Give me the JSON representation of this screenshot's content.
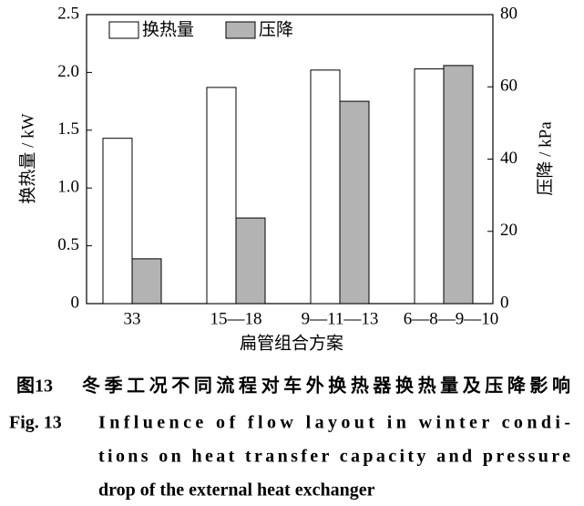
{
  "chart_data": {
    "type": "bar",
    "x_label": "扁管组合方案",
    "y_label": "换热量 / kW",
    "y2_label": "压降 / kPa",
    "categories": [
      "33",
      "15—18",
      "9—11—13",
      "6—8—9—10"
    ],
    "series": [
      {
        "name": "换热量",
        "color": "#ffffff",
        "values": [
          1.43,
          1.87,
          2.02,
          2.03
        ]
      },
      {
        "name": "压降",
        "color": "#b3b3b3",
        "axis": "y2",
        "values": [
          12.4,
          23.7,
          56,
          65.9
        ]
      }
    ],
    "ylim": [
      0,
      2.5
    ],
    "yticks": [
      0,
      0.5,
      {
        "value": 1,
        "label": "1.0"
      },
      1.5,
      {
        "value": 2,
        "label": "2.0"
      },
      2.5
    ],
    "y2lim": [
      0,
      80
    ],
    "y2ticks": [
      0,
      20,
      40,
      60,
      80
    ],
    "grid": false,
    "legend": "top-left"
  },
  "caption": {
    "zh_label": "图13",
    "zh_text": "冬季工况不同流程对车外换热器换热量及压降影响",
    "en_label": "Fig. 13",
    "en_lines": [
      "Influence of flow layout in winter condi-",
      "tions on heat transfer capacity and pressure",
      "drop of the external heat exchanger"
    ]
  }
}
